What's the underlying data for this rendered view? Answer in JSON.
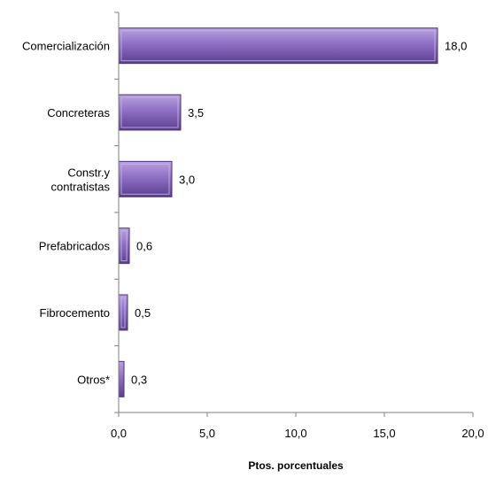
{
  "chart_data": {
    "type": "bar",
    "orientation": "horizontal",
    "categories": [
      "Comercialización",
      "Concreteras",
      "Constr.y contratistas",
      "Prefabricados",
      "Fibrocemento",
      "Otros*"
    ],
    "category_lines": [
      [
        "Comercialización"
      ],
      [
        "Concreteras"
      ],
      [
        "Constr.y",
        "contratistas"
      ],
      [
        "Prefabricados"
      ],
      [
        "Fibrocemento"
      ],
      [
        "Otros*"
      ]
    ],
    "values": [
      18.0,
      3.5,
      3.0,
      0.6,
      0.5,
      0.3
    ],
    "value_labels": [
      "18,0",
      "3,5",
      "3,0",
      "0,6",
      "0,5",
      "0,3"
    ],
    "xlabel": "Ptos. porcentuales",
    "xlim": [
      0,
      20
    ],
    "xticks": [
      0,
      5,
      10,
      15,
      20
    ],
    "xtick_labels": [
      "0,0",
      "5,0",
      "10,0",
      "15,0",
      "20,0"
    ],
    "grid": false,
    "legend": "none",
    "bar_color": "#8e6fc4"
  }
}
